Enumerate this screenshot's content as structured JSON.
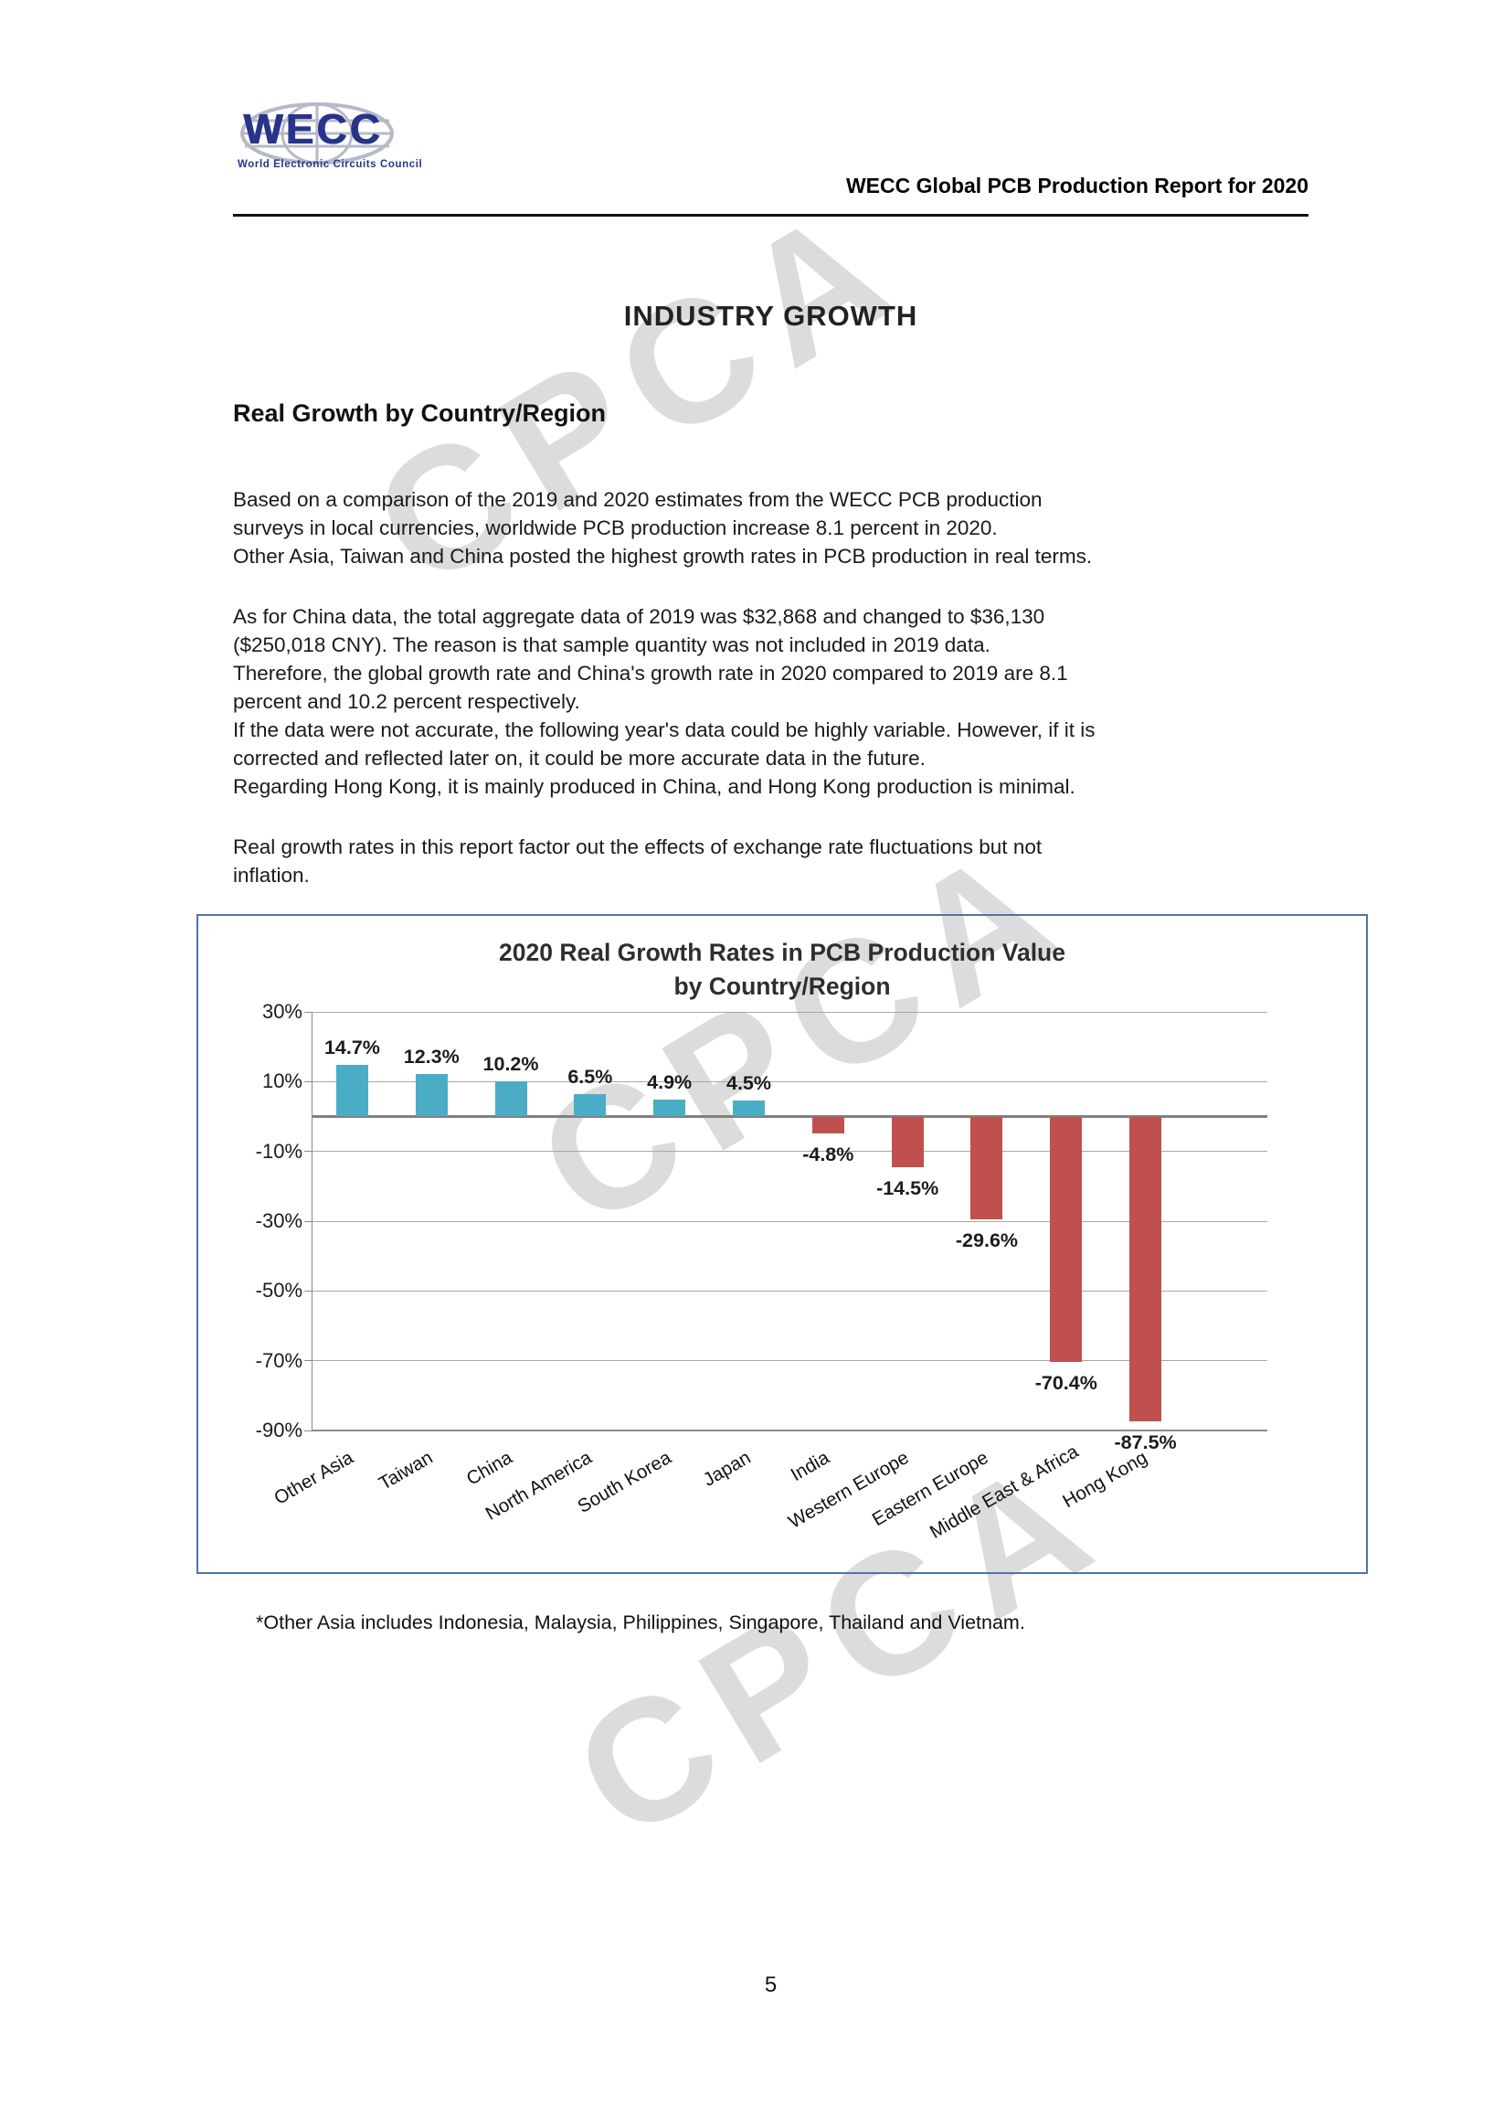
{
  "header": {
    "logo_brand": "WECC",
    "logo_subtitle": "World Electronic Circuits Council",
    "report_title": "WECC Global PCB Production Report for 2020"
  },
  "watermark": {
    "text": "CPCA",
    "color": "#dcdcdc"
  },
  "page_title": "INDUSTRY GROWTH",
  "section": {
    "heading": "Real Growth by Country/Region",
    "paragraphs": [
      "Based on a comparison of the 2019 and 2020 estimates from the WECC PCB production\nsurveys in local currencies, worldwide PCB production increase 8.1 percent in 2020.\nOther Asia, Taiwan and China posted the highest growth rates in PCB production in real terms.",
      "As for China data, the total aggregate data of 2019 was $32,868 and changed to $36,130\n($250,018 CNY). The reason is that sample quantity was not included in 2019 data.\nTherefore, the global growth rate and China's growth rate in 2020 compared to 2019 are 8.1\npercent and 10.2 percent respectively.\nIf the data were not accurate, the following year's data could be highly variable. However, if it is\ncorrected and reflected later on, it could be more accurate data in the future.\nRegarding Hong Kong, it is mainly produced in China, and Hong Kong production is minimal.",
      "Real growth rates in this report factor out the effects of exchange rate fluctuations but not\ninflation."
    ]
  },
  "chart_data": {
    "type": "bar",
    "title": "2020 Real Growth Rates in PCB Production Value\nby Country/Region",
    "categories": [
      "Other Asia",
      "Taiwan",
      "China",
      "North America",
      "South Korea",
      "Japan",
      "India",
      "Western Europe",
      "Eastern Europe",
      "Middle East & Africa",
      "Hong Kong"
    ],
    "values": [
      14.7,
      12.3,
      10.2,
      6.5,
      4.9,
      4.5,
      -4.8,
      -14.5,
      -29.6,
      -70.4,
      -87.5
    ],
    "labels": [
      "14.7%",
      "12.3%",
      "10.2%",
      "6.5%",
      "4.9%",
      "4.5%",
      "-4.8%",
      "-14.5%",
      "-29.6%",
      "-70.4%",
      "-87.5%"
    ],
    "xlabel": "",
    "ylabel": "",
    "ylim": [
      -90,
      30
    ],
    "yticks": [
      30,
      10,
      -10,
      -30,
      -50,
      -70,
      -90
    ],
    "ytick_labels": [
      "30%",
      "10%",
      "-10%",
      "-30%",
      "-50%",
      "-70%",
      "-90%"
    ],
    "grid": true,
    "legend": false,
    "positive_color": "#4BACC6",
    "negative_color": "#C0504D"
  },
  "footnote": "*Other Asia includes Indonesia, Malaysia, Philippines, Singapore, Thailand and Vietnam.",
  "page_number": "5"
}
